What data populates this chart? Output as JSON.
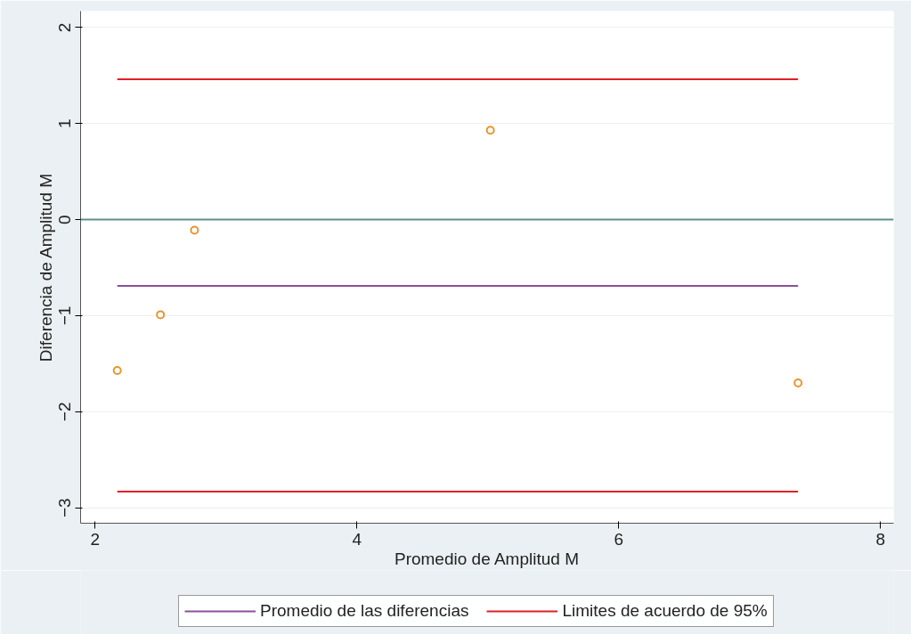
{
  "chart_data": {
    "type": "scatter",
    "xlabel": "Promedio de Amplitud M",
    "ylabel": "Diferencia de Amplitud M",
    "xlim": [
      1.89,
      8.1
    ],
    "ylim": [
      -3.16,
      2.17
    ],
    "xticks": [
      2,
      4,
      6,
      8
    ],
    "yticks": [
      -3,
      -2,
      -1,
      0,
      1,
      2
    ],
    "grid": "y",
    "legend": "bottom",
    "series": [
      {
        "color": "#e8952e",
        "marker": "circle",
        "x": [
          2.17,
          2.5,
          2.76,
          5.02,
          7.37
        ],
        "values": [
          -1.57,
          -0.99,
          -0.11,
          0.93,
          -1.7
        ]
      },
      {
        "type": "line",
        "name": "Promedio de las diferencias",
        "color": "#8b4f9a",
        "x": [
          2.17,
          7.37
        ],
        "values": [
          -0.69,
          -0.69
        ]
      },
      {
        "type": "line",
        "name": "Limites de acuerdo de 95%",
        "color": "#e0202a",
        "x": [
          2.17,
          7.37
        ],
        "values": [
          1.46,
          1.46
        ]
      },
      {
        "type": "line",
        "color": "#e0202a",
        "x": [
          2.17,
          7.37
        ],
        "values": [
          -2.83,
          -2.83
        ]
      }
    ],
    "ref_lines": [
      {
        "axis": "y",
        "value": 0,
        "color": "#5e8f8c"
      }
    ]
  }
}
